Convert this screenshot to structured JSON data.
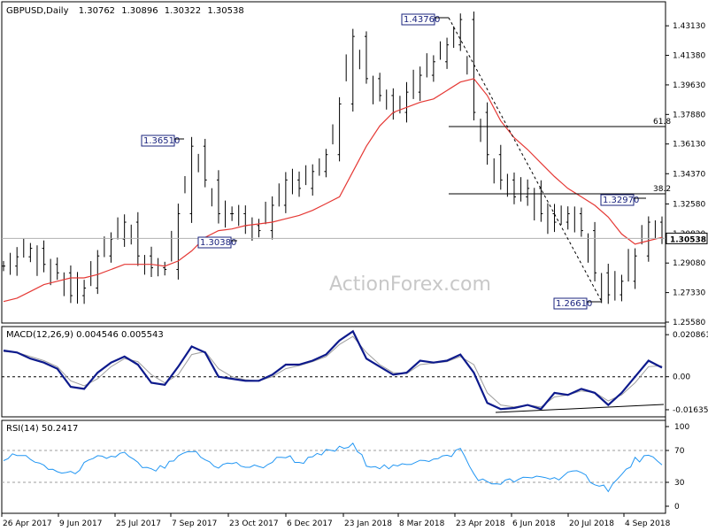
{
  "chart_data": [
    {
      "type": "candlestick",
      "title": "GBPUSD,Daily",
      "ohlc": [
        "1.30762",
        "1.30896",
        "1.30322",
        "1.30538"
      ],
      "current_price": "1.30538",
      "ylim": [
        1.2558,
        1.445
      ],
      "yticks": [
        "1.43130",
        "1.41380",
        "1.39630",
        "1.37880",
        "1.36130",
        "1.34370",
        "1.32580",
        "1.30820",
        "1.29080",
        "1.27330",
        "1.25580"
      ],
      "xticks": [
        "26 Apr 2017",
        "9 Jun 2017",
        "25 Jul 2017",
        "7 Sep 2017",
        "23 Oct 2017",
        "6 Dec 2017",
        "23 Jan 2018",
        "8 Mar 2018",
        "23 Apr 2018",
        "6 Jun 2018",
        "20 Jul 2018",
        "4 Sep 2018"
      ],
      "x": [
        "2017-04-26",
        "2017-05-08",
        "2017-05-18",
        "2017-05-30",
        "2017-06-09",
        "2017-06-19",
        "2017-06-29",
        "2017-07-10",
        "2017-07-20",
        "2017-07-31",
        "2017-08-10",
        "2017-08-21",
        "2017-08-31",
        "2017-09-11",
        "2017-09-20",
        "2017-10-02",
        "2017-10-12",
        "2017-10-23",
        "2017-11-02",
        "2017-11-13",
        "2017-11-23",
        "2017-12-04",
        "2017-12-14",
        "2017-12-26",
        "2018-01-05",
        "2018-01-16",
        "2018-01-25",
        "2018-02-06",
        "2018-02-15",
        "2018-02-27",
        "2018-03-08",
        "2018-03-19",
        "2018-03-29",
        "2018-04-10",
        "2018-04-17",
        "2018-04-26",
        "2018-05-08",
        "2018-05-18",
        "2018-05-30",
        "2018-06-11",
        "2018-06-21",
        "2018-07-02",
        "2018-07-12",
        "2018-07-23",
        "2018-08-02",
        "2018-08-15",
        "2018-08-24",
        "2018-09-05",
        "2018-09-14",
        "2018-09-20"
      ],
      "close": [
        1.289,
        1.2945,
        1.2995,
        1.29,
        1.285,
        1.2715,
        1.276,
        1.295,
        1.305,
        1.315,
        1.295,
        1.288,
        1.287,
        1.32,
        1.36,
        1.34,
        1.32,
        1.32,
        1.313,
        1.31,
        1.325,
        1.34,
        1.335,
        1.345,
        1.355,
        1.385,
        1.425,
        1.4,
        1.39,
        1.38,
        1.392,
        1.402,
        1.41,
        1.42,
        1.435,
        1.38,
        1.355,
        1.34,
        1.33,
        1.335,
        1.32,
        1.315,
        1.32,
        1.31,
        1.285,
        1.272,
        1.28,
        1.295,
        1.315,
        1.3054
      ],
      "ma": [
        1.268,
        1.27,
        1.274,
        1.278,
        1.28,
        1.282,
        1.282,
        1.284,
        1.287,
        1.29,
        1.29,
        1.29,
        1.289,
        1.292,
        1.298,
        1.306,
        1.31,
        1.311,
        1.313,
        1.314,
        1.315,
        1.317,
        1.319,
        1.322,
        1.326,
        1.33,
        1.345,
        1.36,
        1.372,
        1.38,
        1.383,
        1.386,
        1.388,
        1.393,
        1.398,
        1.4,
        1.39,
        1.375,
        1.365,
        1.358,
        1.35,
        1.342,
        1.335,
        1.33,
        1.325,
        1.318,
        1.308,
        1.302,
        1.304,
        1.306
      ],
      "labels": [
        "1.43760",
        "1.36510",
        "1.30380",
        "1.32970",
        "1.26610"
      ],
      "fib_levels": [
        "61.8",
        "38.2"
      ]
    },
    {
      "type": "line",
      "title": "MACD(12,26,9) 0.004546 0.005543",
      "yticks": [
        "0.020861",
        "0.00",
        "-0.016357"
      ],
      "ylim": [
        -0.019,
        0.024
      ],
      "macd": [
        0.013,
        0.012,
        0.009,
        0.007,
        0.004,
        -0.005,
        -0.006,
        0.002,
        0.007,
        0.01,
        0.006,
        -0.003,
        -0.004,
        0.005,
        0.015,
        0.012,
        0.0,
        -0.001,
        -0.002,
        -0.002,
        0.001,
        0.006,
        0.006,
        0.008,
        0.011,
        0.018,
        0.0225,
        0.009,
        0.005,
        0.001,
        0.002,
        0.008,
        0.007,
        0.008,
        0.011,
        0.002,
        -0.013,
        -0.016,
        -0.0155,
        -0.014,
        -0.016,
        -0.008,
        -0.009,
        -0.006,
        -0.008,
        -0.014,
        -0.008,
        0.0,
        0.008,
        0.0045
      ],
      "signal": [
        0.0125,
        0.012,
        0.01,
        0.008,
        0.005,
        -0.002,
        -0.0045,
        -0.001,
        0.005,
        0.009,
        0.0075,
        0.001,
        -0.003,
        0.001,
        0.011,
        0.0125,
        0.004,
        0.0,
        -0.0015,
        -0.002,
        0.0,
        0.004,
        0.0055,
        0.0075,
        0.01,
        0.016,
        0.02,
        0.012,
        0.006,
        0.002,
        0.0015,
        0.006,
        0.0068,
        0.0075,
        0.01,
        0.006,
        -0.008,
        -0.014,
        -0.015,
        -0.014,
        -0.015,
        -0.01,
        -0.009,
        -0.007,
        -0.0078,
        -0.012,
        -0.009,
        -0.003,
        0.005,
        0.0055
      ]
    },
    {
      "type": "line",
      "title": "RSI(14) 50.2417",
      "yticks": [
        "100",
        "70",
        "30",
        "0"
      ],
      "ylim": [
        0,
        100
      ],
      "rsi": [
        60,
        64,
        61,
        48,
        44,
        40,
        52,
        60,
        62,
        66,
        52,
        44,
        49,
        60,
        70,
        58,
        50,
        54,
        50,
        48,
        56,
        64,
        55,
        60,
        68,
        72,
        76,
        54,
        50,
        48,
        52,
        60,
        58,
        62,
        72,
        40,
        28,
        30,
        32,
        34,
        38,
        34,
        42,
        40,
        30,
        22,
        38,
        58,
        62,
        50
      ]
    }
  ]
}
